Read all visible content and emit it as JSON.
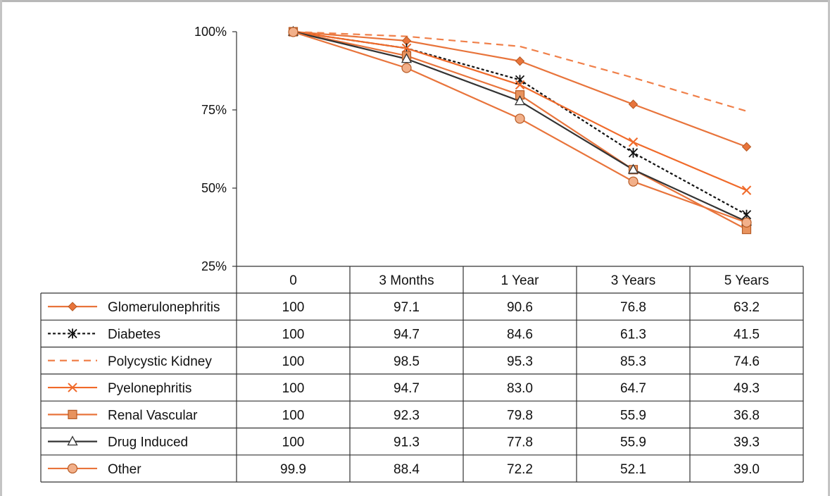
{
  "chart_data": {
    "type": "line",
    "title": "",
    "xlabel": "",
    "ylabel": "",
    "categories": [
      "0",
      "3 Months",
      "1 Year",
      "3 Years",
      "5 Years"
    ],
    "y_ticks": [
      "100%",
      "75%",
      "50%",
      "25%"
    ],
    "ylim": [
      25,
      100
    ],
    "grid": false,
    "legend": "data-table",
    "series": [
      {
        "name": "Glomerulonephritis",
        "values": [
          100,
          97.1,
          90.6,
          76.8,
          63.2
        ],
        "labels": [
          "100",
          "97.1",
          "90.6",
          "76.8",
          "63.2"
        ],
        "color": "#e8743b",
        "dash": "solid",
        "marker": "diamond"
      },
      {
        "name": "Diabetes",
        "values": [
          100,
          94.7,
          84.6,
          61.3,
          41.5
        ],
        "labels": [
          "100",
          "94.7",
          "84.6",
          "61.3",
          "41.5"
        ],
        "color": "#111111",
        "dash": "dotted",
        "marker": "asterisk"
      },
      {
        "name": "Polycystic Kidney",
        "values": [
          100,
          98.5,
          95.3,
          85.3,
          74.6
        ],
        "labels": [
          "100",
          "98.5",
          "95.3",
          "85.3",
          "74.6"
        ],
        "color": "#f0804a",
        "dash": "dashed",
        "marker": "none"
      },
      {
        "name": "Pyelonephritis",
        "values": [
          100,
          94.7,
          83.0,
          64.7,
          49.3
        ],
        "labels": [
          "100",
          "94.7",
          "83.0",
          "64.7",
          "49.3"
        ],
        "color": "#f06a2a",
        "dash": "solid",
        "marker": "x"
      },
      {
        "name": "Renal Vascular",
        "values": [
          100,
          92.3,
          79.8,
          55.9,
          36.8
        ],
        "labels": [
          "100",
          "92.3",
          "79.8",
          "55.9",
          "36.8"
        ],
        "color": "#e8743b",
        "dash": "solid",
        "marker": "square"
      },
      {
        "name": "Drug Induced",
        "values": [
          100,
          91.3,
          77.8,
          55.9,
          39.3
        ],
        "labels": [
          "100",
          "91.3",
          "77.8",
          "55.9",
          "39.3"
        ],
        "color": "#333333",
        "dash": "solid",
        "marker": "triangle"
      },
      {
        "name": "Other",
        "values": [
          99.9,
          88.4,
          72.2,
          52.1,
          39.0
        ],
        "labels": [
          "99.9",
          "88.4",
          "72.2",
          "52.1",
          "39.0"
        ],
        "color": "#e8743b",
        "dash": "solid",
        "marker": "circle"
      }
    ]
  }
}
